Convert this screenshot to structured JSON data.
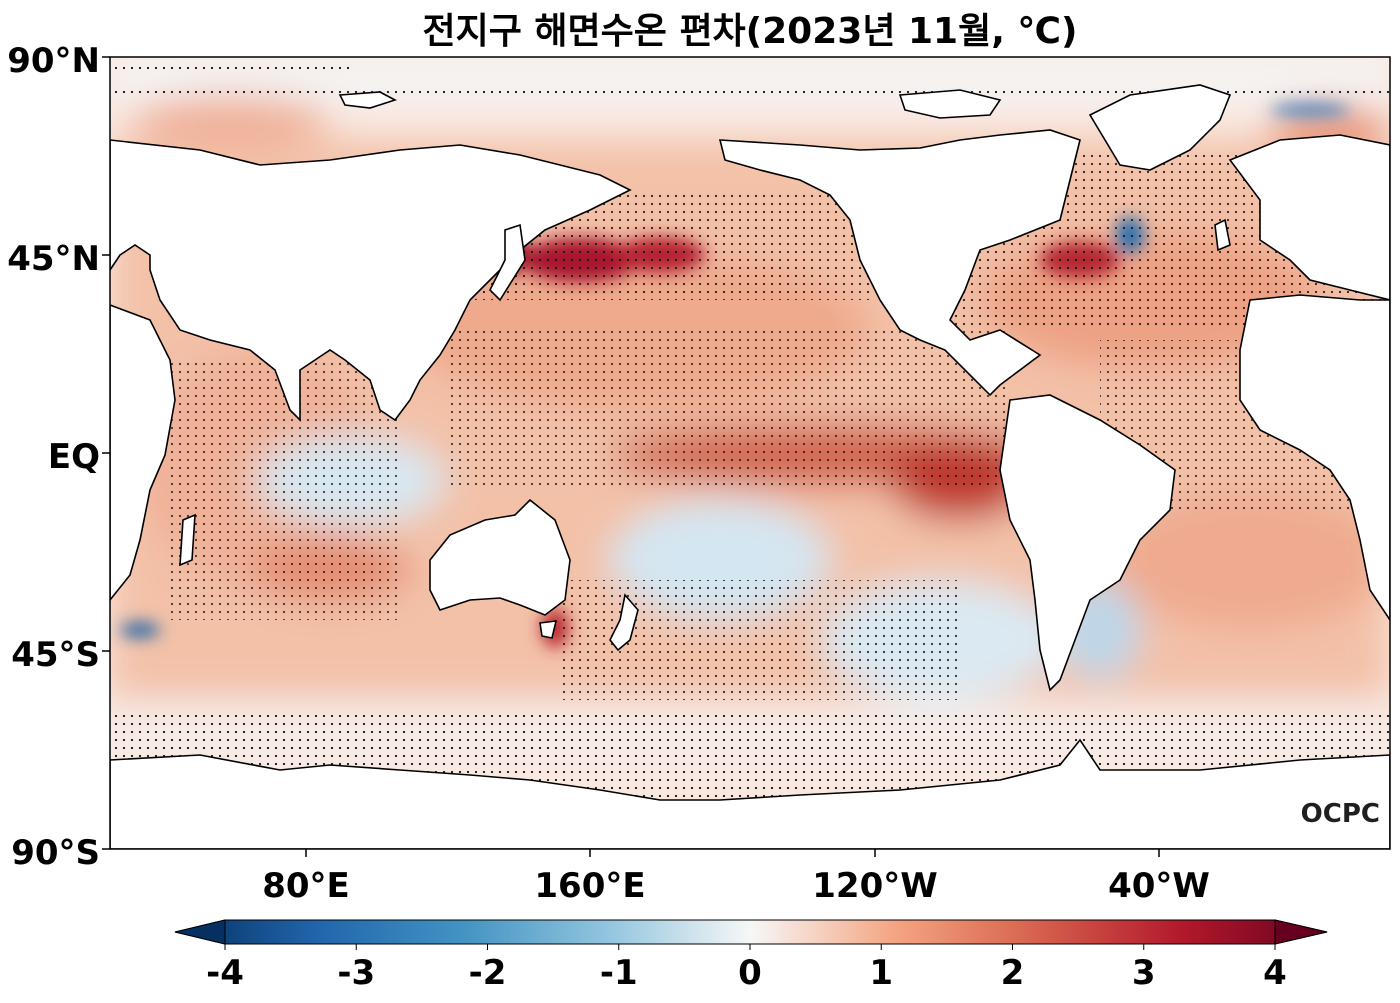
{
  "title": "전지구 해면수온 편차(2023년 11월, ℃)",
  "logo": "OCPC",
  "map": {
    "type": "heatmap",
    "projection": "equirectangular",
    "lon_range": [
      30,
      390
    ],
    "lat_range": [
      -90,
      90
    ],
    "lat_ticks": [
      {
        "label": "90°N",
        "lat": 90
      },
      {
        "label": "45°N",
        "lat": 45
      },
      {
        "label": "EQ",
        "lat": 0
      },
      {
        "label": "45°S",
        "lat": -45
      },
      {
        "label": "90°S",
        "lat": -90
      }
    ],
    "lon_ticks": [
      {
        "label": "80°E",
        "lon": 80
      },
      {
        "label": "160°E",
        "lon": 160
      },
      {
        "label": "120°W",
        "lon": 240
      },
      {
        "label": "40°W",
        "lon": 320
      }
    ],
    "stippling": "significant anomalies marked with dots",
    "colormap": "RdBu_r",
    "colors": {
      "strong_negative": "#053061",
      "negative": "#4393c3",
      "neutral": "#f7f7f7",
      "positive": "#f4a582",
      "strong_positive": "#67001f"
    }
  },
  "colorbar": {
    "min": -4,
    "max": 4,
    "ticks": [
      "-4",
      "-3",
      "-2",
      "-1",
      "0",
      "1",
      "2",
      "3",
      "4"
    ],
    "extend": "both"
  }
}
